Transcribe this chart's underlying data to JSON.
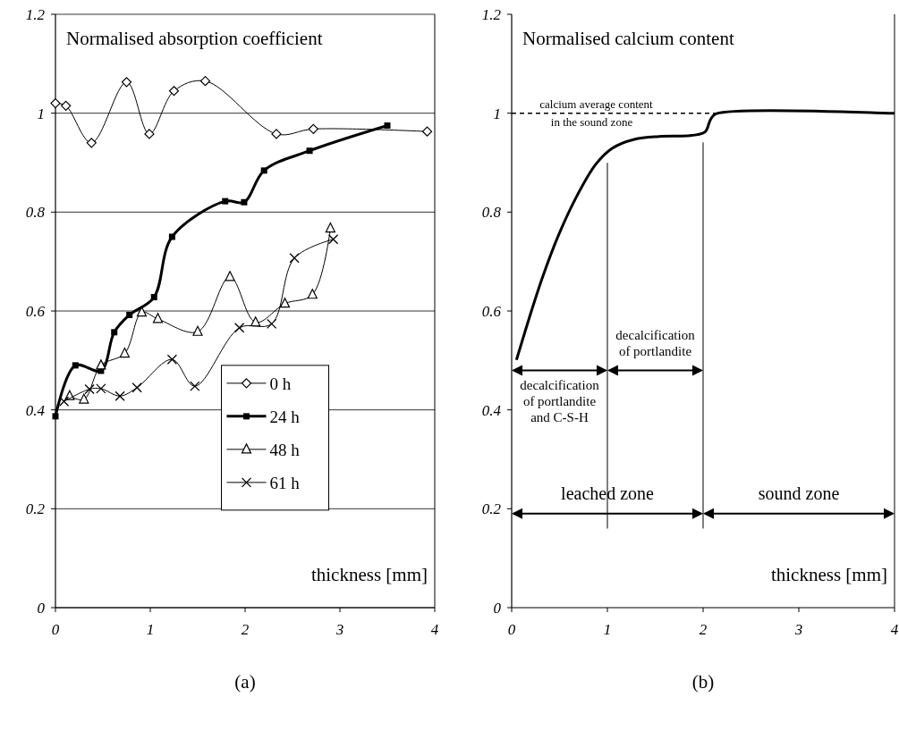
{
  "chart_data": [
    {
      "type": "line",
      "title": "(a)",
      "ylabel": "Normalised absorption coefficient",
      "xlabel": "thickness [mm]",
      "xlim": [
        0,
        4
      ],
      "xticks": [
        0,
        1,
        2,
        3,
        4
      ],
      "ylim": [
        0,
        1.2
      ],
      "yticks": [
        0,
        0.2,
        0.4,
        0.6,
        0.8,
        1,
        1.2
      ],
      "grid": "y",
      "legend": "bottom right",
      "series": [
        {
          "name": "0 h",
          "color": "#000000",
          "marker": "diamond",
          "x": [
            0,
            0.11,
            0.38,
            0.75,
            0.99,
            1.25,
            1.58,
            2.33,
            2.72,
            3.92
          ],
          "values": [
            1.02,
            1.015,
            0.94,
            1.063,
            0.958,
            1.045,
            1.065,
            0.958,
            0.968,
            0.963
          ]
        },
        {
          "name": "24 h",
          "color": "#000000",
          "marker": "square",
          "x": [
            0,
            0.21,
            0.48,
            0.62,
            0.78,
            1.04,
            1.23,
            1.79,
            1.99,
            2.2,
            2.68,
            3.5
          ],
          "values": [
            0.387,
            0.49,
            0.479,
            0.557,
            0.592,
            0.628,
            0.75,
            0.822,
            0.82,
            0.884,
            0.924,
            0.975
          ]
        },
        {
          "name": "48 h",
          "color": "#000000",
          "marker": "triangle",
          "x": [
            0.15,
            0.3,
            0.48,
            0.73,
            0.91,
            1.08,
            1.5,
            1.84,
            2.11,
            2.42,
            2.71,
            2.9
          ],
          "values": [
            0.428,
            0.421,
            0.49,
            0.514,
            0.597,
            0.584,
            0.558,
            0.669,
            0.577,
            0.615,
            0.633,
            0.767
          ]
        },
        {
          "name": "61 h",
          "color": "#000000",
          "marker": "cross",
          "x": [
            0.09,
            0.36,
            0.48,
            0.68,
            0.86,
            1.23,
            1.47,
            1.94,
            2.28,
            2.52,
            2.93
          ],
          "values": [
            0.417,
            0.442,
            0.443,
            0.428,
            0.445,
            0.502,
            0.448,
            0.566,
            0.574,
            0.707,
            0.745
          ]
        }
      ]
    },
    {
      "type": "line",
      "title": "(b)",
      "ylabel": "Normalised calcium content",
      "xlabel": "thickness [mm]",
      "xlim": [
        0,
        4
      ],
      "xticks": [
        0,
        1,
        2,
        3,
        4
      ],
      "ylim": [
        0,
        1.2
      ],
      "yticks": [
        0,
        0.2,
        0.4,
        0.6,
        0.8,
        1,
        1.2
      ],
      "marker": "none",
      "series": [
        {
          "color": "#000000",
          "x": [
            0.05,
            0.2,
            0.32,
            0.48,
            0.68,
            0.88,
            1.05,
            1.28,
            1.54,
            1.88,
            2.02,
            2.08,
            2.14,
            3.97,
            4
          ],
          "values": [
            0.501,
            0.596,
            0.667,
            0.749,
            0.832,
            0.897,
            0.929,
            0.947,
            0.953,
            0.955,
            0.962,
            0.988,
            0.999,
            1,
            1
          ]
        }
      ],
      "ref_lines": [
        {
          "axis": "y",
          "value": 1,
          "label": "calcium average content in the sound zone",
          "line_style": "dashed"
        },
        {
          "axis": "x",
          "value": 1
        },
        {
          "axis": "x",
          "value": 2
        }
      ],
      "annotations": [
        {
          "text": "decalcification of portlandite and C-S-H",
          "x": 1,
          "y": 0.48
        },
        "decalcification of portlandite",
        "leached zone",
        "sound zone"
      ]
    }
  ]
}
